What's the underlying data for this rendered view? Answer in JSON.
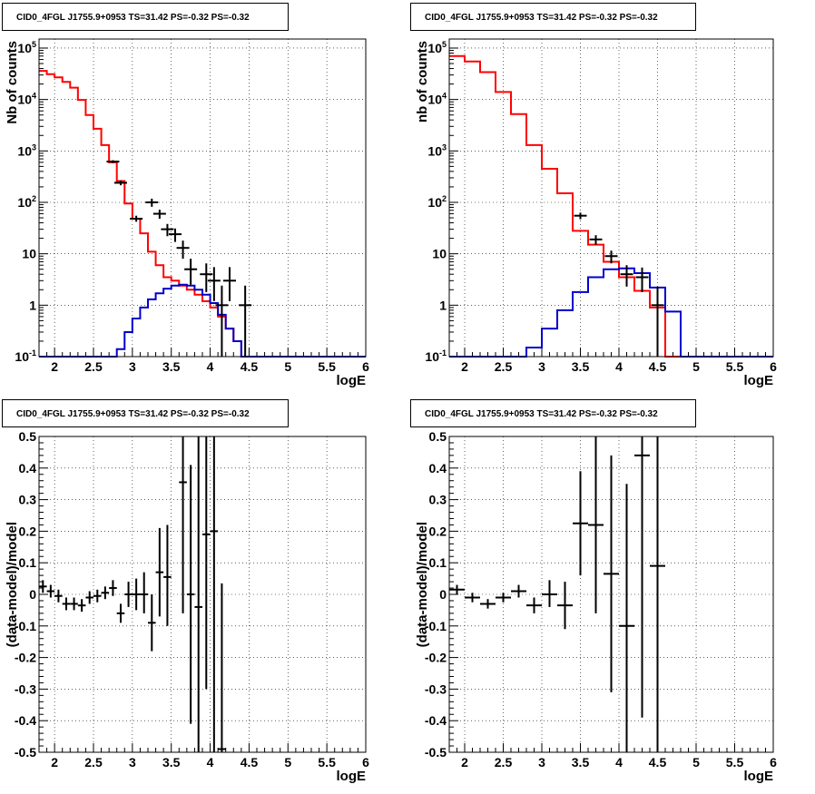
{
  "colors": {
    "data": "#000000",
    "total_model": "#ff0000",
    "source_model": "#0000cc",
    "grid": "#000000"
  },
  "chart_data": [
    {
      "type": "histogram",
      "title": "CID0_4FGL J1755.9+0953 TS=31.42 PS=-0.32 PS=-0.32",
      "xlabel": "logE",
      "ylabel": "Nb of counts",
      "xlim": [
        1.8,
        6.0
      ],
      "ylim": [
        0.1,
        150000
      ],
      "yscale": "log",
      "grid": true,
      "x_ticks": [
        "2",
        "2.5",
        "3",
        "3.5",
        "4",
        "4.5",
        "5",
        "5.5",
        "6"
      ],
      "y_ticks": [
        "10^-1",
        "1",
        "10",
        "10^2",
        "10^3",
        "10^4",
        "10^5"
      ],
      "bin_edges": [
        1.8,
        1.9,
        2.0,
        2.1,
        2.2,
        2.3,
        2.4,
        2.5,
        2.6,
        2.7,
        2.8,
        2.9,
        3.0,
        3.1,
        3.2,
        3.3,
        3.4,
        3.5,
        3.6,
        3.7,
        3.8,
        3.9,
        4.0,
        4.1,
        4.2,
        4.3,
        4.4,
        4.5,
        4.6,
        4.7,
        4.8,
        4.9,
        5.0,
        5.1,
        5.2,
        5.3,
        5.4,
        5.5,
        5.6,
        5.7,
        5.8,
        5.9,
        6.0
      ],
      "series": [
        {
          "name": "total model",
          "values": [
            36000,
            31000,
            27000,
            22000,
            17000,
            9800,
            5000,
            2700,
            1300,
            600,
            260,
            95,
            48,
            25,
            11,
            6,
            3.5,
            3.0,
            2.4,
            2.0,
            1.6,
            1.2,
            0.9,
            0.6,
            0.35,
            0.2,
            0.1,
            0.1,
            0.1,
            0.1,
            0.1,
            0.1,
            0.1,
            0.1,
            0.1,
            0.1,
            0.1,
            0.1,
            0.1,
            0.1,
            0.1,
            0.1
          ]
        },
        {
          "name": "source model",
          "values": [
            0.1,
            0.1,
            0.1,
            0.1,
            0.1,
            0.1,
            0.1,
            0.1,
            0.1,
            0.1,
            0.14,
            0.3,
            0.55,
            0.9,
            1.3,
            1.7,
            2.1,
            2.4,
            2.5,
            2.4,
            2.0,
            1.6,
            1.1,
            0.65,
            0.35,
            0.2,
            0.1,
            0.1,
            0.1,
            0.1,
            0.1,
            0.1,
            0.1,
            0.1,
            0.1,
            0.1,
            0.1,
            0.1,
            0.1,
            0.1,
            0.1,
            0.1
          ]
        }
      ],
      "data_points": [
        {
          "x": 2.75,
          "y": 620,
          "lo": 580,
          "hi": 660
        },
        {
          "x": 2.85,
          "y": 240,
          "lo": 215,
          "hi": 265
        },
        {
          "x": 3.05,
          "y": 48,
          "lo": 42,
          "hi": 55
        },
        {
          "x": 3.25,
          "y": 100,
          "lo": 82,
          "hi": 118
        },
        {
          "x": 3.35,
          "y": 60,
          "lo": 48,
          "hi": 72
        },
        {
          "x": 3.45,
          "y": 30,
          "lo": 22,
          "hi": 38
        },
        {
          "x": 3.55,
          "y": 24,
          "lo": 17,
          "hi": 31
        },
        {
          "x": 3.65,
          "y": 13,
          "lo": 8,
          "hi": 18
        },
        {
          "x": 3.75,
          "y": 5,
          "lo": 2.5,
          "hi": 8
        },
        {
          "x": 3.95,
          "y": 4,
          "lo": 1.8,
          "hi": 6.5
        },
        {
          "x": 4.05,
          "y": 3,
          "lo": 1.2,
          "hi": 5.5
        },
        {
          "x": 4.15,
          "y": 1,
          "lo": 0.1,
          "hi": 2.4
        },
        {
          "x": 4.25,
          "y": 3,
          "lo": 1.2,
          "hi": 5.5
        },
        {
          "x": 4.45,
          "y": 1,
          "lo": 0.1,
          "hi": 2.4
        }
      ]
    },
    {
      "type": "histogram",
      "title": "CID0_4FGL J1755.9+0953 TS=31.42 PS=-0.32 PS=-0.32",
      "xlabel": "logE",
      "ylabel": "nb of counts",
      "xlim": [
        1.8,
        6.0
      ],
      "ylim": [
        0.1,
        150000
      ],
      "yscale": "log",
      "grid": true,
      "x_ticks": [
        "2",
        "2.5",
        "3",
        "3.5",
        "4",
        "4.5",
        "5",
        "5.5",
        "6"
      ],
      "y_ticks": [
        "10^-1",
        "1",
        "10",
        "10^2",
        "10^3",
        "10^4",
        "10^5"
      ],
      "bin_edges": [
        1.8,
        2.0,
        2.2,
        2.4,
        2.6,
        2.8,
        3.0,
        3.2,
        3.4,
        3.6,
        3.8,
        4.0,
        4.2,
        4.4,
        4.6,
        4.8,
        5.0,
        5.2,
        5.4,
        5.6,
        5.8,
        6.0
      ],
      "series": [
        {
          "name": "total model",
          "values": [
            70000,
            55000,
            34000,
            14000,
            5200,
            1300,
            450,
            150,
            28,
            15,
            7,
            3.5,
            1.9,
            0.9,
            0.1,
            0.1,
            0.1,
            0.1,
            0.1,
            0.1,
            0.1
          ]
        },
        {
          "name": "source model",
          "values": [
            0.1,
            0.1,
            0.1,
            0.1,
            0.1,
            0.15,
            0.35,
            0.8,
            1.8,
            3.5,
            5.0,
            5.2,
            4.2,
            2.2,
            0.75,
            0.1,
            0.1,
            0.1,
            0.1,
            0.1,
            0.1
          ]
        }
      ],
      "data_points": [
        {
          "x": 3.5,
          "y": 55,
          "lo": 47,
          "hi": 63
        },
        {
          "x": 3.7,
          "y": 19,
          "lo": 15,
          "hi": 23
        },
        {
          "x": 3.9,
          "y": 9,
          "lo": 6.5,
          "hi": 11.5
        },
        {
          "x": 4.1,
          "y": 4,
          "lo": 2.3,
          "hi": 6
        },
        {
          "x": 4.3,
          "y": 3.5,
          "lo": 1.8,
          "hi": 5.4
        },
        {
          "x": 4.5,
          "y": 1,
          "lo": 0.1,
          "hi": 2.3
        }
      ]
    },
    {
      "type": "scatter",
      "title": "CID0_4FGL J1755.9+0953 TS=31.42 PS=-0.32 PS=-0.32",
      "xlabel": "logE",
      "ylabel": "(data-model)/model",
      "xlim": [
        1.8,
        6.0
      ],
      "ylim": [
        -0.5,
        0.5
      ],
      "grid": true,
      "x_ticks": [
        "2",
        "2.5",
        "3",
        "3.5",
        "4",
        "4.5",
        "5",
        "5.5",
        "6"
      ],
      "y_ticks": [
        "-0.5",
        "-0.4",
        "-0.3",
        "-0.2",
        "-0.1",
        "0",
        "0.1",
        "0.2",
        "0.3",
        "0.4",
        "0.5"
      ],
      "bin_halfwidth": 0.05,
      "points": [
        {
          "x": 1.85,
          "y": 0.025,
          "lo": 0.005,
          "hi": 0.045
        },
        {
          "x": 1.95,
          "y": 0.01,
          "lo": -0.01,
          "hi": 0.03
        },
        {
          "x": 2.05,
          "y": -0.005,
          "lo": -0.025,
          "hi": 0.015
        },
        {
          "x": 2.15,
          "y": -0.03,
          "lo": -0.05,
          "hi": -0.01
        },
        {
          "x": 2.25,
          "y": -0.03,
          "lo": -0.05,
          "hi": -0.01
        },
        {
          "x": 2.35,
          "y": -0.035,
          "lo": -0.055,
          "hi": -0.015
        },
        {
          "x": 2.45,
          "y": -0.01,
          "lo": -0.03,
          "hi": 0.01
        },
        {
          "x": 2.55,
          "y": -0.005,
          "lo": -0.025,
          "hi": 0.015
        },
        {
          "x": 2.65,
          "y": 0.005,
          "lo": -0.015,
          "hi": 0.025
        },
        {
          "x": 2.75,
          "y": 0.02,
          "lo": -0.005,
          "hi": 0.045
        },
        {
          "x": 2.85,
          "y": -0.06,
          "lo": -0.09,
          "hi": -0.03
        },
        {
          "x": 2.95,
          "y": 0.0,
          "lo": -0.04,
          "hi": 0.04
        },
        {
          "x": 3.05,
          "y": 0.0,
          "lo": -0.05,
          "hi": 0.05
        },
        {
          "x": 3.15,
          "y": 0.0,
          "lo": -0.06,
          "hi": 0.07
        },
        {
          "x": 3.25,
          "y": -0.09,
          "lo": -0.18,
          "hi": 0.0
        },
        {
          "x": 3.35,
          "y": 0.07,
          "lo": -0.07,
          "hi": 0.21
        },
        {
          "x": 3.45,
          "y": 0.055,
          "lo": -0.1,
          "hi": 0.22
        },
        {
          "x": 3.65,
          "y": 0.355,
          "lo": -0.06,
          "hi": 0.5
        },
        {
          "x": 3.75,
          "y": 0.0,
          "lo": -0.41,
          "hi": 0.41
        },
        {
          "x": 3.85,
          "y": -0.04,
          "lo": -0.5,
          "hi": 0.5
        },
        {
          "x": 3.95,
          "y": 0.19,
          "lo": -0.3,
          "hi": 0.5
        },
        {
          "x": 4.05,
          "y": 0.2,
          "lo": -0.5,
          "hi": 0.5
        },
        {
          "x": 4.15,
          "y": -0.49,
          "lo": -0.5,
          "hi": 0.035
        }
      ]
    },
    {
      "type": "scatter",
      "title": "CID0_4FGL J1755.9+0953 TS=31.42 PS=-0.32 PS=-0.32",
      "xlabel": "logE",
      "ylabel": "(data-model)/model",
      "xlim": [
        1.8,
        6.0
      ],
      "ylim": [
        -0.5,
        0.5
      ],
      "grid": true,
      "x_ticks": [
        "2",
        "2.5",
        "3",
        "3.5",
        "4",
        "4.5",
        "5",
        "5.5",
        "6"
      ],
      "y_ticks": [
        "-0.5",
        "-0.4",
        "-0.3",
        "-0.2",
        "-0.1",
        "0",
        "0.1",
        "0.2",
        "0.3",
        "0.4",
        "0.5"
      ],
      "bin_halfwidth": 0.1,
      "points": [
        {
          "x": 1.9,
          "y": 0.015,
          "lo": 0.0,
          "hi": 0.03
        },
        {
          "x": 2.1,
          "y": -0.01,
          "lo": -0.025,
          "hi": 0.005
        },
        {
          "x": 2.3,
          "y": -0.03,
          "lo": -0.045,
          "hi": -0.015
        },
        {
          "x": 2.5,
          "y": -0.01,
          "lo": -0.025,
          "hi": 0.005
        },
        {
          "x": 2.7,
          "y": 0.01,
          "lo": -0.01,
          "hi": 0.03
        },
        {
          "x": 2.9,
          "y": -0.035,
          "lo": -0.06,
          "hi": -0.01
        },
        {
          "x": 3.1,
          "y": 0.0,
          "lo": -0.04,
          "hi": 0.045
        },
        {
          "x": 3.3,
          "y": -0.035,
          "lo": -0.11,
          "hi": 0.04
        },
        {
          "x": 3.5,
          "y": 0.225,
          "lo": 0.06,
          "hi": 0.39
        },
        {
          "x": 3.7,
          "y": 0.22,
          "lo": -0.06,
          "hi": 0.5
        },
        {
          "x": 3.9,
          "y": 0.065,
          "lo": -0.31,
          "hi": 0.44
        },
        {
          "x": 4.1,
          "y": -0.1,
          "lo": -0.5,
          "hi": 0.35
        },
        {
          "x": 4.3,
          "y": 0.44,
          "lo": -0.39,
          "hi": 0.5
        },
        {
          "x": 4.5,
          "y": 0.09,
          "lo": -0.5,
          "hi": 0.5
        }
      ]
    }
  ]
}
